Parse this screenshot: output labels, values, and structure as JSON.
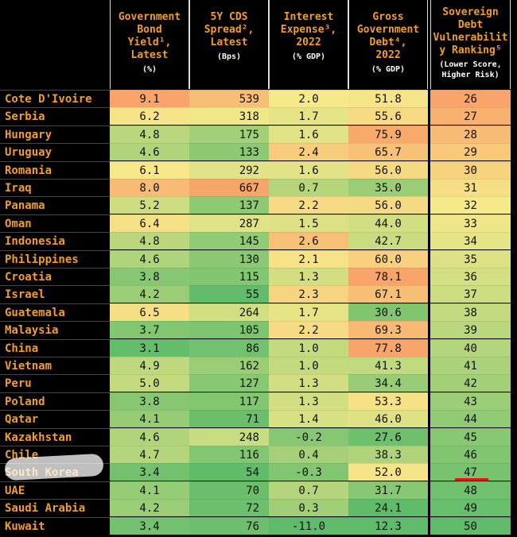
{
  "chart_data": {
    "type": "table",
    "columns": [
      {
        "title": "Government\nBond\nYield¹,\nLatest",
        "unit": "(%)"
      },
      {
        "title": "5Y CDS\nSpread²,\nLatest",
        "unit": "(Bps)"
      },
      {
        "title": "Interest\nExpense³,\n2022",
        "unit": "(% GDP)"
      },
      {
        "title": "Gross\nGovernment\nDebt⁴,\n2022",
        "unit": "(% GDP)"
      },
      {
        "title": "Sovereign\nDebt\nVulnerabilit\ny Ranking⁵",
        "unit": "(Lower Score,\nHigher Risk)"
      }
    ],
    "rows": [
      {
        "country": "Cote D'Ivoire",
        "yield": "9.1",
        "cds": "539",
        "interest": "2.0",
        "debt": "51.8",
        "rank": "26"
      },
      {
        "country": "Serbia",
        "yield": "6.2",
        "cds": "318",
        "interest": "1.7",
        "debt": "55.6",
        "rank": "27"
      },
      {
        "country": "Hungary",
        "yield": "4.8",
        "cds": "175",
        "interest": "1.6",
        "debt": "75.9",
        "rank": "28"
      },
      {
        "country": "Uruguay",
        "yield": "4.6",
        "cds": "133",
        "interest": "2.4",
        "debt": "65.7",
        "rank": "29"
      },
      {
        "country": "Romania",
        "yield": "6.1",
        "cds": "292",
        "interest": "1.6",
        "debt": "56.0",
        "rank": "30"
      },
      {
        "country": "Iraq",
        "yield": "8.0",
        "cds": "667",
        "interest": "0.7",
        "debt": "35.0",
        "rank": "31"
      },
      {
        "country": "Panama",
        "yield": "5.2",
        "cds": "137",
        "interest": "2.2",
        "debt": "56.0",
        "rank": "32"
      },
      {
        "country": "Oman",
        "yield": "6.4",
        "cds": "287",
        "interest": "1.5",
        "debt": "44.0",
        "rank": "33"
      },
      {
        "country": "Indonesia",
        "yield": "4.8",
        "cds": "145",
        "interest": "2.6",
        "debt": "42.7",
        "rank": "34"
      },
      {
        "country": "Philippines",
        "yield": "4.6",
        "cds": "130",
        "interest": "2.1",
        "debt": "60.0",
        "rank": "35"
      },
      {
        "country": "Croatia",
        "yield": "3.8",
        "cds": "115",
        "interest": "1.3",
        "debt": "78.1",
        "rank": "36"
      },
      {
        "country": "Israel",
        "yield": "4.2",
        "cds": "55",
        "interest": "2.3",
        "debt": "67.1",
        "rank": "37"
      },
      {
        "country": "Guatemala",
        "yield": "6.5",
        "cds": "264",
        "interest": "1.7",
        "debt": "30.6",
        "rank": "38"
      },
      {
        "country": "Malaysia",
        "yield": "3.7",
        "cds": "105",
        "interest": "2.2",
        "debt": "69.3",
        "rank": "39"
      },
      {
        "country": "China",
        "yield": "3.1",
        "cds": "86",
        "interest": "1.0",
        "debt": "77.8",
        "rank": "40"
      },
      {
        "country": "Vietnam",
        "yield": "4.9",
        "cds": "162",
        "interest": "1.0",
        "debt": "41.3",
        "rank": "41"
      },
      {
        "country": "Peru",
        "yield": "5.0",
        "cds": "127",
        "interest": "1.3",
        "debt": "34.4",
        "rank": "42"
      },
      {
        "country": "Poland",
        "yield": "3.8",
        "cds": "117",
        "interest": "1.3",
        "debt": "53.3",
        "rank": "43"
      },
      {
        "country": "Qatar",
        "yield": "4.1",
        "cds": "71",
        "interest": "1.4",
        "debt": "46.0",
        "rank": "44"
      },
      {
        "country": "Kazakhstan",
        "yield": "4.6",
        "cds": "248",
        "interest": "-0.2",
        "debt": "27.6",
        "rank": "45"
      },
      {
        "country": "Chile",
        "yield": "4.7",
        "cds": "116",
        "interest": "0.4",
        "debt": "38.3",
        "rank": "46"
      },
      {
        "country": "South Korea",
        "yield": "3.4",
        "cds": "54",
        "interest": "-0.3",
        "debt": "52.0",
        "rank": "47"
      },
      {
        "country": "UAE",
        "yield": "4.1",
        "cds": "70",
        "interest": "0.7",
        "debt": "31.7",
        "rank": "48"
      },
      {
        "country": "Saudi Arabia",
        "yield": "4.2",
        "cds": "72",
        "interest": "0.3",
        "debt": "24.1",
        "rank": "49"
      },
      {
        "country": "Kuwait",
        "yield": "3.4",
        "cds": "76",
        "interest": "-11.0",
        "debt": "12.3",
        "rank": "50"
      }
    ],
    "highlighted_row": "South Korea",
    "colors": {
      "header_text": "#f39c2e",
      "background": "#000000",
      "high_risk": "#f8a46a",
      "mid": "#f6e98a",
      "low_risk": "#5fbb6a"
    }
  }
}
